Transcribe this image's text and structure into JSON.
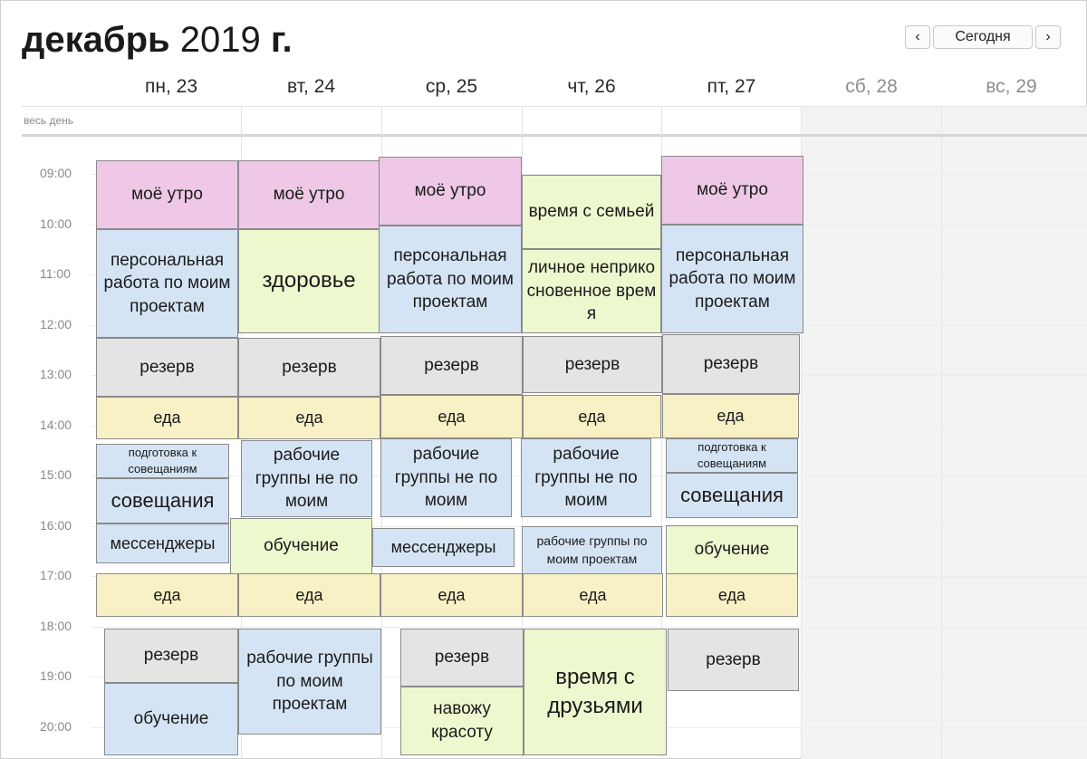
{
  "header": {
    "month": "декабрь",
    "year": "2019",
    "year_suffix": "г.",
    "prev_icon": "‹",
    "today_label": "Сегодня",
    "next_icon": "›"
  },
  "days": [
    {
      "label": "пн, 23",
      "weekend": false
    },
    {
      "label": "вт, 24",
      "weekend": false
    },
    {
      "label": "ср, 25",
      "weekend": false
    },
    {
      "label": "чт, 26",
      "weekend": false
    },
    {
      "label": "пт, 27",
      "weekend": false
    },
    {
      "label": "сб, 28",
      "weekend": true
    },
    {
      "label": "вс, 29",
      "weekend": true
    }
  ],
  "allday_label": "весь день",
  "times": [
    "09:00",
    "10:00",
    "11:00",
    "12:00",
    "13:00",
    "14:00",
    "15:00",
    "16:00",
    "17:00",
    "18:00",
    "19:00",
    "20:00"
  ],
  "events": {
    "mon": {
      "e1": "моё утро",
      "e2": "персональная работа по моим проектам",
      "e3": "резерв",
      "e4": "еда",
      "e5": "подготовка к совещаниям",
      "e6": "совещания",
      "e7": "мессенджеры",
      "e8": "еда",
      "e9": "резерв",
      "e10": "обучение"
    },
    "tue": {
      "e1": "моё утро",
      "e2": "здоровье",
      "e3": "резерв",
      "e4": "еда",
      "e5": "рабочие группы не по моим",
      "e6": "обучение",
      "e7": "еда",
      "e8": "рабочие группы по моим проектам"
    },
    "wed": {
      "e1": "моё утро",
      "e2": "персональная работа по моим проектам",
      "e3": "резерв",
      "e4": "еда",
      "e5": "рабочие группы не по моим",
      "e6": "мессенджеры",
      "e7": "еда",
      "e8": "резерв",
      "e9": "навожу красоту"
    },
    "thu": {
      "e1": "время с семьей",
      "e2": "личное неприкосновенное время",
      "e3": "резерв",
      "e4": "еда",
      "e5": "рабочие группы не по моим",
      "e6": "рабочие группы по моим проектам",
      "e7": "еда",
      "e8": "время с друзьями"
    },
    "fri": {
      "e1": "моё утро",
      "e2": "персональная работа по моим проектам",
      "e3": "резерв",
      "e4": "еда",
      "e5": "подготовка к совещаниям",
      "e6": "совещания",
      "e7": "обучение",
      "e8": "еда",
      "e9": "резерв"
    }
  }
}
